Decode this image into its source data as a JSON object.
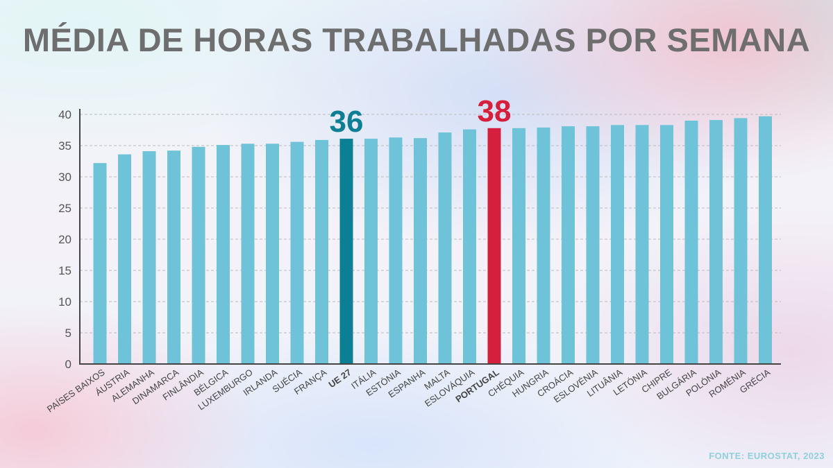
{
  "chart_data": {
    "type": "bar",
    "title": "MÉDIA DE HORAS TRABALHADAS POR SEMANA",
    "xlabel": "",
    "ylabel": "",
    "ylim": [
      0,
      40
    ],
    "yticks": [
      0,
      5,
      10,
      15,
      20,
      25,
      30,
      35,
      40
    ],
    "grid": true,
    "categories": [
      "PAÍSES BAIXOS",
      "ÁUSTRIA",
      "ALEMANHA",
      "DINAMARCA",
      "FINLÂNDIA",
      "BÉLGICA",
      "LUXEMBURGO",
      "IRLANDA",
      "SUÉCIA",
      "FRANÇA",
      "UE 27",
      "ITÁLIA",
      "ESTÓNIA",
      "ESPANHA",
      "MALTA",
      "ESLOVÁQUIA",
      "PORTUGAL",
      "CHÉQUIA",
      "HUNGRIA",
      "CROÁCIA",
      "ESLOVÉNIA",
      "LITUÂNIA",
      "LETÓNIA",
      "CHIPRE",
      "BULGÁRIA",
      "POLÓNIA",
      "ROMÉNIA",
      "GRÉCIA"
    ],
    "values": [
      32.2,
      33.6,
      34.1,
      34.2,
      34.8,
      35.1,
      35.3,
      35.3,
      35.6,
      35.9,
      36.1,
      36.1,
      36.3,
      36.2,
      37.1,
      37.6,
      37.8,
      37.8,
      37.9,
      38.1,
      38.1,
      38.3,
      38.3,
      38.3,
      39.0,
      39.1,
      39.4,
      39.7
    ],
    "highlights": [
      {
        "category": "UE 27",
        "label": "36",
        "color": "#0d7f94"
      },
      {
        "category": "PORTUGAL",
        "label": "38",
        "color": "#d61f3c"
      }
    ],
    "bar_color": "#6fc3d8",
    "axis_color": "#444444"
  },
  "source": "FONTE: EUROSTAT, 2023"
}
